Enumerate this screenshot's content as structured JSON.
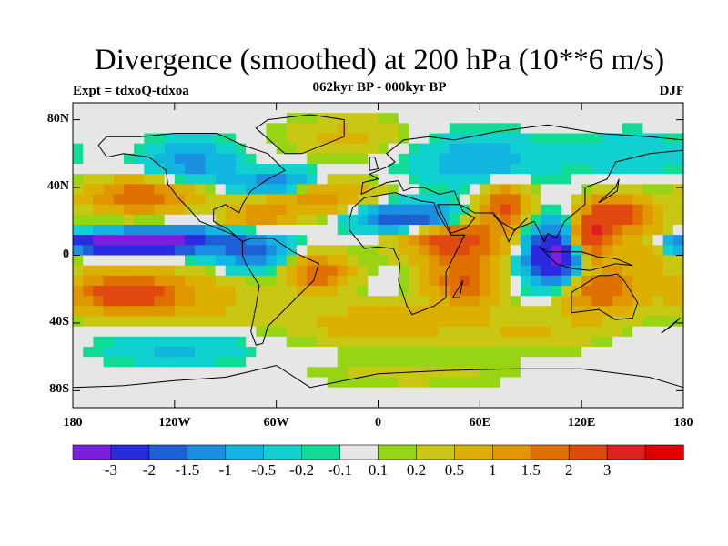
{
  "title": "Divergence (smoothed) at 200 hPa (10**6 m/s)",
  "subtitle": "062kyr BP - 000kyr BP",
  "left_label": "Expt = tdxoQ-tdxoa",
  "right_label": "DJF",
  "lat_ticks": [
    {
      "label": "80N",
      "lat": 80
    },
    {
      "label": "40N",
      "lat": 40
    },
    {
      "label": "0",
      "lat": 0
    },
    {
      "label": "40S",
      "lat": -40
    },
    {
      "label": "80S",
      "lat": -80
    }
  ],
  "lon_ticks": [
    {
      "label": "180",
      "lon": -180
    },
    {
      "label": "120W",
      "lon": -120
    },
    {
      "label": "60W",
      "lon": -60
    },
    {
      "label": "0",
      "lon": 0
    },
    {
      "label": "60E",
      "lon": 60
    },
    {
      "label": "120E",
      "lon": 120
    },
    {
      "label": "180",
      "lon": 180
    }
  ],
  "colorbar": {
    "colors": [
      "#7a1fe0",
      "#2a2ae0",
      "#1e5fd8",
      "#1a8fe0",
      "#10b6e0",
      "#10d0d0",
      "#10dc96",
      "#e6e6e6",
      "#96d414",
      "#c8c814",
      "#dcb000",
      "#e09600",
      "#e07000",
      "#e04a10",
      "#e02020",
      "#e00000"
    ],
    "labels": [
      "-3",
      "-2",
      "-1.5",
      "-1",
      "-0.5",
      "-0.2",
      "-0.1",
      "0.1",
      "0.2",
      "0.5",
      "1",
      "1.5",
      "2",
      "3"
    ]
  },
  "map_regions": {
    "levels": [
      -4,
      -3,
      -2,
      -1.5,
      -1,
      -0.5,
      -0.2,
      -0.1,
      0.1,
      0.2,
      0.5,
      1,
      1.5,
      2,
      3,
      4
    ],
    "blobs": [
      {
        "lon": -155,
        "lat": 7,
        "rx": 32,
        "ry": 6,
        "v": -4
      },
      {
        "lon": -120,
        "lat": 9,
        "rx": 28,
        "ry": 7,
        "v": -2.5
      },
      {
        "lon": -75,
        "lat": 3,
        "rx": 22,
        "ry": 11,
        "v": -1.8
      },
      {
        "lon": -150,
        "lat": -22,
        "rx": 30,
        "ry": 12,
        "v": 2.5
      },
      {
        "lon": -110,
        "lat": -25,
        "rx": 40,
        "ry": 15,
        "v": 0.8
      },
      {
        "lon": -140,
        "lat": 35,
        "rx": 32,
        "ry": 10,
        "v": 2.0
      },
      {
        "lon": -110,
        "lat": 55,
        "rx": 25,
        "ry": 12,
        "v": -1.2
      },
      {
        "lon": -60,
        "lat": 42,
        "rx": 25,
        "ry": 8,
        "v": -1.8
      },
      {
        "lon": -40,
        "lat": 35,
        "rx": 35,
        "ry": 10,
        "v": 1.5
      },
      {
        "lon": -70,
        "lat": 22,
        "rx": 20,
        "ry": 8,
        "v": 1.2
      },
      {
        "lon": -35,
        "lat": -10,
        "rx": 18,
        "ry": 10,
        "v": 2.0
      },
      {
        "lon": 20,
        "lat": 22,
        "rx": 30,
        "ry": 8,
        "v": -2.5
      },
      {
        "lon": 45,
        "lat": 10,
        "rx": 30,
        "ry": 12,
        "v": 2.5
      },
      {
        "lon": 50,
        "lat": -15,
        "rx": 20,
        "ry": 15,
        "v": 2.0
      },
      {
        "lon": 75,
        "lat": 30,
        "rx": 15,
        "ry": 12,
        "v": 2.2
      },
      {
        "lon": 105,
        "lat": 0,
        "rx": 18,
        "ry": 18,
        "v": -3.5
      },
      {
        "lon": 125,
        "lat": 10,
        "rx": 12,
        "ry": 12,
        "v": 3.5
      },
      {
        "lon": 140,
        "lat": 25,
        "rx": 20,
        "ry": 10,
        "v": 2.5
      },
      {
        "lon": 130,
        "lat": -20,
        "rx": 25,
        "ry": 15,
        "v": 2.0
      },
      {
        "lon": 160,
        "lat": 5,
        "rx": 20,
        "ry": 15,
        "v": 0.8
      },
      {
        "lon": 0,
        "lat": -40,
        "rx": 50,
        "ry": 12,
        "v": 0.8
      },
      {
        "lon": 90,
        "lat": -45,
        "rx": 40,
        "ry": 12,
        "v": 0.5
      },
      {
        "lon": -120,
        "lat": -55,
        "rx": 40,
        "ry": 10,
        "v": -0.6
      },
      {
        "lon": 60,
        "lat": 55,
        "rx": 40,
        "ry": 15,
        "v": -0.8
      },
      {
        "lon": -20,
        "lat": 70,
        "rx": 35,
        "ry": 12,
        "v": 0.6
      },
      {
        "lon": 150,
        "lat": 60,
        "rx": 30,
        "ry": 12,
        "v": -0.5
      },
      {
        "lon": 20,
        "lat": -70,
        "rx": 60,
        "ry": 8,
        "v": 0.3
      }
    ]
  }
}
